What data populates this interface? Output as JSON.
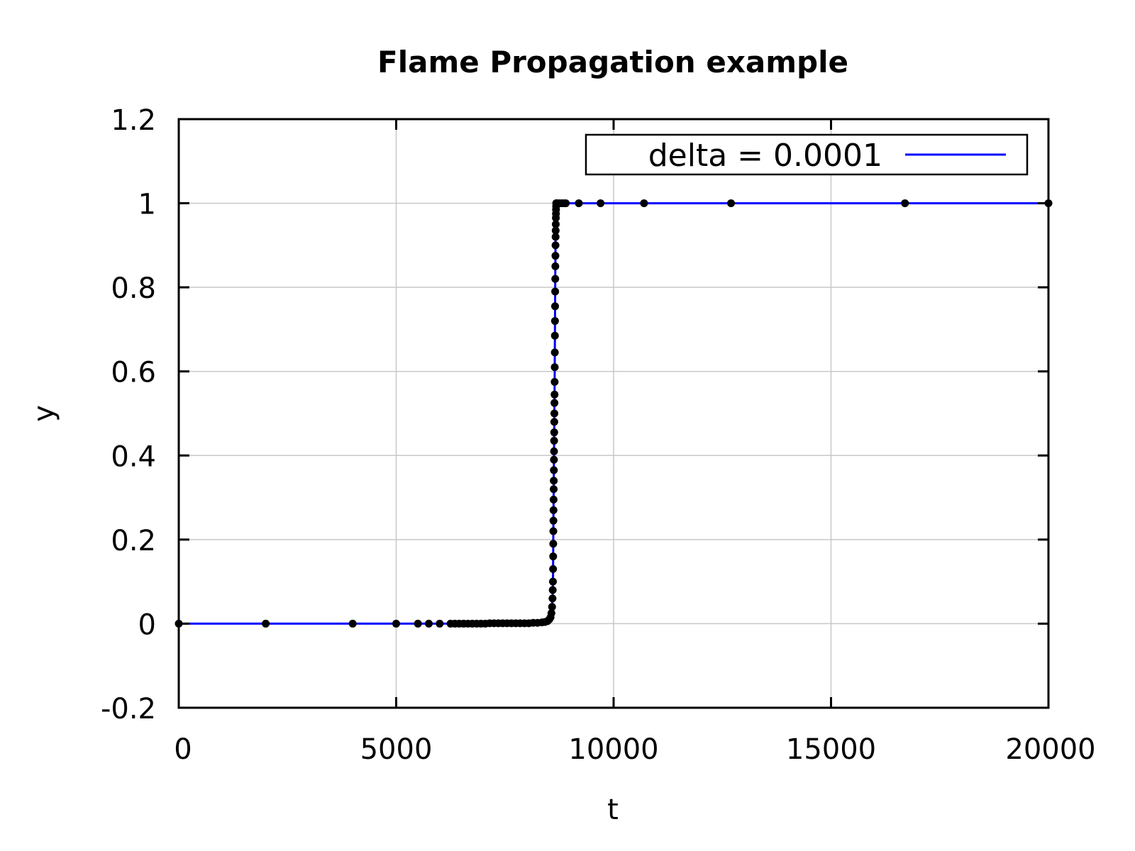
{
  "chart_data": {
    "type": "line",
    "title": "Flame Propagation example",
    "xlabel": "t",
    "ylabel": "y",
    "xlim": [
      0,
      20000
    ],
    "ylim": [
      -0.2,
      1.2
    ],
    "xticks": [
      0,
      5000,
      10000,
      15000,
      20000
    ],
    "xtick_labels": [
      "0",
      "5000",
      "10000",
      "15000",
      "20000"
    ],
    "yticks": [
      -0.2,
      0,
      0.2,
      0.4,
      0.6,
      0.8,
      1,
      1.2
    ],
    "ytick_labels": [
      "-0.2",
      "0",
      "0.2",
      "0.4",
      "0.6",
      "0.8",
      "1",
      "1.2"
    ],
    "grid": true,
    "legend": {
      "position": "top-right",
      "entries": [
        "delta = 0.0001"
      ]
    },
    "series": [
      {
        "name": "delta = 0.0001",
        "color": "#0000ff",
        "marker_color": "#000000",
        "x": [
          0,
          2000,
          4000,
          5000,
          5500,
          5750,
          6000,
          6250,
          6350,
          6450,
          6550,
          6650,
          6750,
          6850,
          6950,
          7050,
          7150,
          7250,
          7350,
          7450,
          7550,
          7650,
          7750,
          7850,
          7950,
          8050,
          8150,
          8250,
          8350,
          8420,
          8480,
          8520,
          8550,
          8570,
          8585,
          8595,
          8600,
          8605,
          8608,
          8610,
          8612,
          8614,
          8616,
          8618,
          8620,
          8622,
          8624,
          8626,
          8628,
          8630,
          8632,
          8634,
          8636,
          8638,
          8640,
          8642,
          8644,
          8646,
          8648,
          8650,
          8652,
          8654,
          8656,
          8658,
          8660,
          8662,
          8664,
          8666,
          8668,
          8670,
          8672,
          8674,
          8676,
          8678,
          8680,
          8700,
          8750,
          8800,
          8850,
          8900,
          9200,
          9700,
          10700,
          12700,
          16700,
          20000
        ],
        "y": [
          0,
          0,
          0,
          0,
          0,
          0,
          0,
          0,
          0,
          0,
          0,
          0,
          0,
          0,
          0,
          0,
          0.001,
          0.001,
          0.001,
          0.001,
          0.001,
          0.001,
          0.001,
          0.001,
          0.001,
          0.001,
          0.002,
          0.002,
          0.003,
          0.004,
          0.006,
          0.01,
          0.015,
          0.025,
          0.04,
          0.06,
          0.08,
          0.1,
          0.13,
          0.16,
          0.19,
          0.22,
          0.245,
          0.27,
          0.295,
          0.32,
          0.34,
          0.365,
          0.39,
          0.41,
          0.435,
          0.455,
          0.48,
          0.5,
          0.525,
          0.545,
          0.575,
          0.61,
          0.645,
          0.685,
          0.72,
          0.755,
          0.79,
          0.82,
          0.85,
          0.875,
          0.9,
          0.92,
          0.935,
          0.95,
          0.965,
          0.975,
          0.985,
          0.993,
          1,
          1,
          1,
          1,
          1,
          1,
          1,
          1,
          1,
          1,
          1,
          1
        ]
      }
    ]
  }
}
